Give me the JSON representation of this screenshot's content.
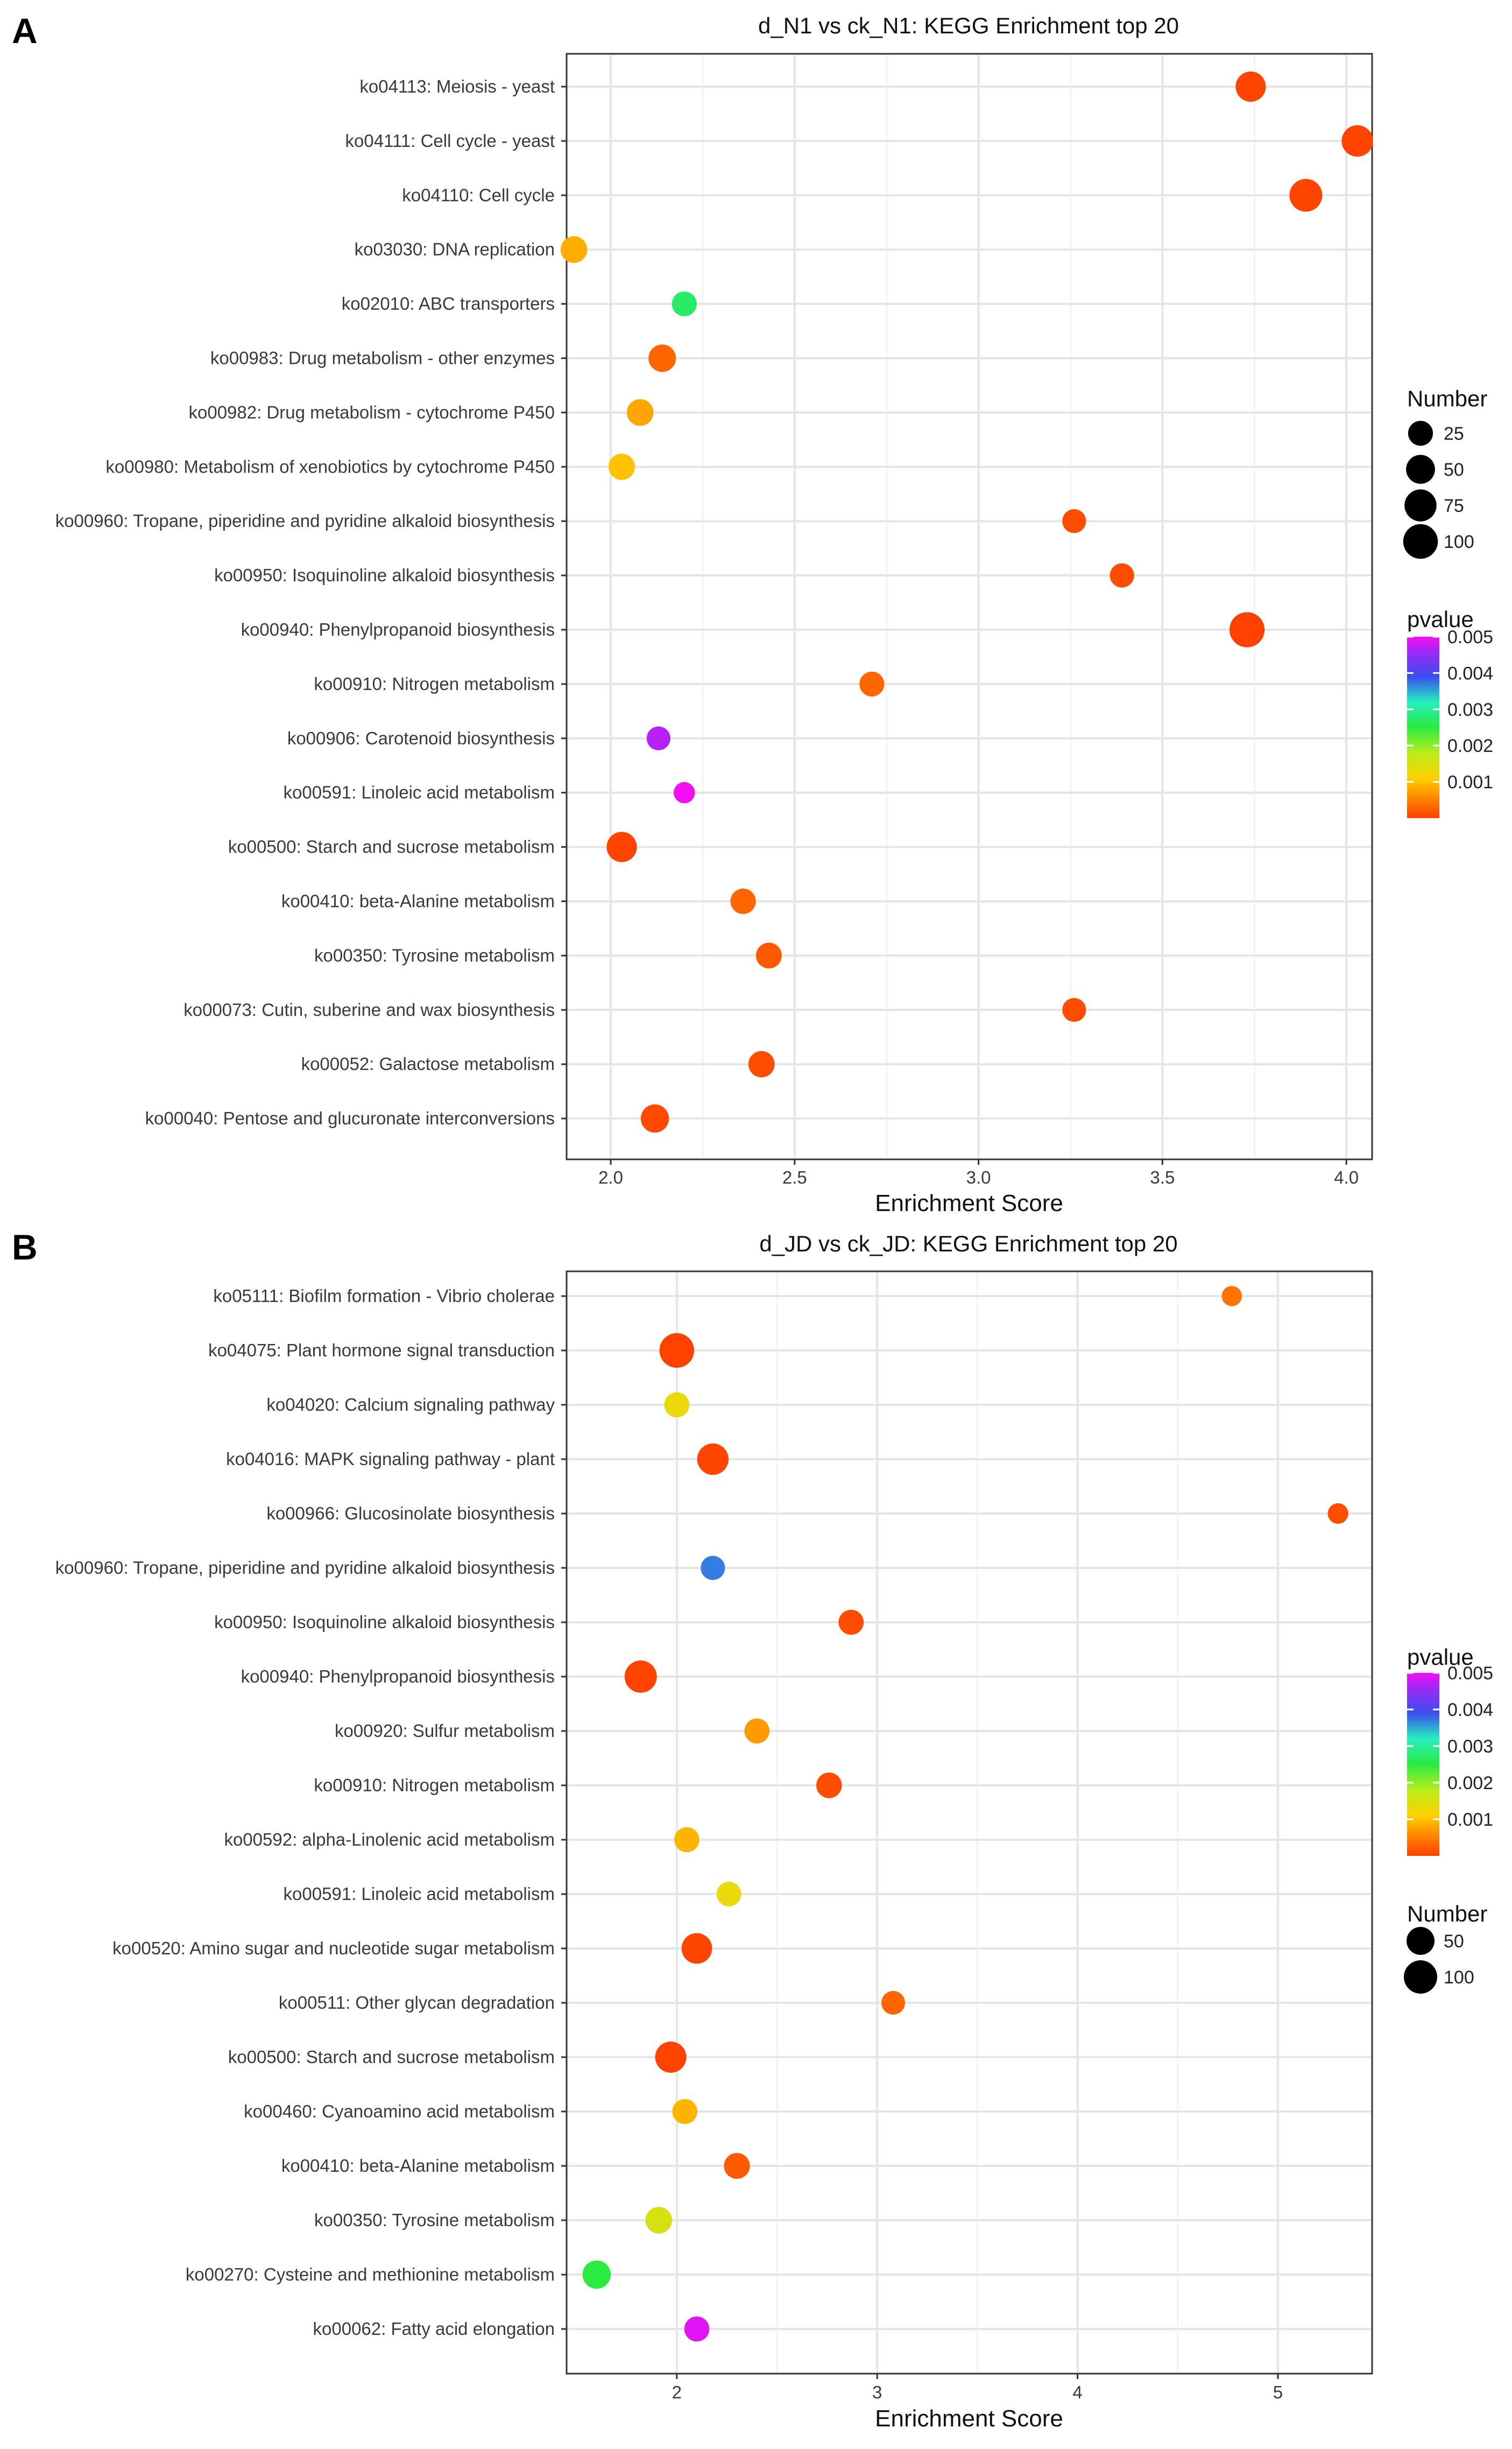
{
  "chart_data": [
    {
      "type": "scatter",
      "panel": "A",
      "title": "d_N1 vs ck_N1: KEGG Enrichment top 20",
      "xlabel": "Enrichment Score",
      "ylabel": "",
      "xlim": [
        1.88,
        4.07
      ],
      "xticks": [
        2.0,
        2.5,
        3.0,
        3.5,
        4.0
      ],
      "xtick_labels": [
        "2.0",
        "2.5",
        "3.0",
        "3.5",
        "4.0"
      ],
      "grid": true,
      "legend_order": [
        "size",
        "color"
      ],
      "size_legend": {
        "title": "Number",
        "values": [
          25,
          50,
          75,
          100
        ],
        "labels": [
          "25",
          "50",
          "75",
          "100"
        ]
      },
      "color_legend": {
        "title": "pvalue",
        "range": [
          0,
          0.005
        ],
        "ticks": [
          0.001,
          0.002,
          0.003,
          0.004,
          0.005
        ],
        "labels": [
          "0.001",
          "0.002",
          "0.003",
          "0.004",
          "0.005"
        ]
      },
      "points": [
        {
          "term": "ko04113: Meiosis - yeast",
          "x": 3.74,
          "number": 60,
          "pvalue": 5e-05
        },
        {
          "term": "ko04111: Cell cycle - yeast",
          "x": 4.03,
          "number": 70,
          "pvalue": 3e-05
        },
        {
          "term": "ko04110: Cell cycle",
          "x": 3.89,
          "number": 82,
          "pvalue": 3e-05
        },
        {
          "term": "ko03030: DNA replication",
          "x": 1.9,
          "number": 35,
          "pvalue": 0.00085
        },
        {
          "term": "ko02010: ABC transporters",
          "x": 2.2,
          "number": 25,
          "pvalue": 0.0027
        },
        {
          "term": "ko00983: Drug metabolism - other enzymes",
          "x": 2.14,
          "number": 40,
          "pvalue": 0.0003
        },
        {
          "term": "ko00982: Drug metabolism - cytochrome P450",
          "x": 2.08,
          "number": 35,
          "pvalue": 0.0008
        },
        {
          "term": "ko00980: Metabolism of xenobiotics by cytochrome P450",
          "x": 2.03,
          "number": 33,
          "pvalue": 0.001
        },
        {
          "term": "ko00960: Tropane, piperidine and pyridine alkaloid biosynthesis",
          "x": 3.26,
          "number": 20,
          "pvalue": 0.0001
        },
        {
          "term": "ko00950: Isoquinoline alkaloid biosynthesis",
          "x": 3.39,
          "number": 22,
          "pvalue": 0.0001
        },
        {
          "term": "ko00940: Phenylpropanoid biosynthesis",
          "x": 3.73,
          "number": 105,
          "pvalue": 1e-05
        },
        {
          "term": "ko00910: Nitrogen metabolism",
          "x": 2.71,
          "number": 25,
          "pvalue": 0.0003
        },
        {
          "term": "ko00906: Carotenoid biosynthesis",
          "x": 2.13,
          "number": 20,
          "pvalue": 0.0047
        },
        {
          "term": "ko00591: Linoleic acid metabolism",
          "x": 2.2,
          "number": 10,
          "pvalue": 0.005
        },
        {
          "term": "ko00500: Starch and sucrose metabolism",
          "x": 2.03,
          "number": 60,
          "pvalue": 3e-05
        },
        {
          "term": "ko00410: beta-Alanine metabolism",
          "x": 2.36,
          "number": 28,
          "pvalue": 0.0003
        },
        {
          "term": "ko00350: Tyrosine metabolism",
          "x": 2.43,
          "number": 30,
          "pvalue": 0.0002
        },
        {
          "term": "ko00073: Cutin, suberine and wax biosynthesis",
          "x": 3.26,
          "number": 20,
          "pvalue": 0.0001
        },
        {
          "term": "ko00052: Galactose metabolism",
          "x": 2.41,
          "number": 33,
          "pvalue": 0.0001
        },
        {
          "term": "ko00040: Pentose and glucuronate interconversions",
          "x": 2.12,
          "number": 45,
          "pvalue": 8e-05
        }
      ]
    },
    {
      "type": "scatter",
      "panel": "B",
      "title": "d_JD vs ck_JD: KEGG Enrichment top 20",
      "xlabel": "Enrichment Score",
      "ylabel": "",
      "xlim": [
        1.45,
        5.47
      ],
      "xticks": [
        2,
        3,
        4,
        5
      ],
      "xtick_labels": [
        "2",
        "3",
        "4",
        "5"
      ],
      "grid": true,
      "legend_order": [
        "color",
        "size"
      ],
      "size_legend": {
        "title": "Number",
        "values": [
          50,
          100
        ],
        "labels": [
          "50",
          "100"
        ]
      },
      "color_legend": {
        "title": "pvalue",
        "range": [
          0,
          0.005
        ],
        "ticks": [
          0.001,
          0.002,
          0.003,
          0.004,
          0.005
        ],
        "labels": [
          "0.001",
          "0.002",
          "0.003",
          "0.004",
          "0.005"
        ]
      },
      "points": [
        {
          "term": "ko05111: Biofilm formation - Vibrio cholerae",
          "x": 4.77,
          "number": 8,
          "pvalue": 0.0004
        },
        {
          "term": "ko04075: Plant hormone signal transduction",
          "x": 2.0,
          "number": 115,
          "pvalue": 1e-05
        },
        {
          "term": "ko04020: Calcium signaling pathway",
          "x": 2.0,
          "number": 30,
          "pvalue": 0.0013
        },
        {
          "term": "ko04016: MAPK signaling pathway - plant",
          "x": 2.18,
          "number": 80,
          "pvalue": 3e-05
        },
        {
          "term": "ko00966: Glucosinolate biosynthesis",
          "x": 5.3,
          "number": 9,
          "pvalue": 0.0001
        },
        {
          "term": "ko00960: Tropane, piperidine and pyridine alkaloid biosynthesis",
          "x": 2.18,
          "number": 25,
          "pvalue": 0.0037
        },
        {
          "term": "ko00950: Isoquinoline alkaloid biosynthesis",
          "x": 2.87,
          "number": 30,
          "pvalue": 0.0001
        },
        {
          "term": "ko00940: Phenylpropanoid biosynthesis",
          "x": 1.82,
          "number": 88,
          "pvalue": 2e-05
        },
        {
          "term": "ko00920: Sulfur metabolism",
          "x": 2.4,
          "number": 30,
          "pvalue": 0.0007
        },
        {
          "term": "ko00910: Nitrogen metabolism",
          "x": 2.76,
          "number": 33,
          "pvalue": 0.0001
        },
        {
          "term": "ko00592: alpha-Linolenic acid metabolism",
          "x": 2.05,
          "number": 30,
          "pvalue": 0.0009
        },
        {
          "term": "ko00591: Linoleic acid metabolism",
          "x": 2.26,
          "number": 27,
          "pvalue": 0.0013
        },
        {
          "term": "ko00520: Amino sugar and nucleotide sugar metabolism",
          "x": 2.1,
          "number": 72,
          "pvalue": 3e-05
        },
        {
          "term": "ko00511: Other glycan degradation",
          "x": 3.08,
          "number": 22,
          "pvalue": 0.0003
        },
        {
          "term": "ko00500: Starch and sucrose metabolism",
          "x": 1.97,
          "number": 78,
          "pvalue": 3e-05
        },
        {
          "term": "ko00460: Cyanoamino acid metabolism",
          "x": 2.04,
          "number": 30,
          "pvalue": 0.0009
        },
        {
          "term": "ko00410: beta-Alanine metabolism",
          "x": 2.3,
          "number": 35,
          "pvalue": 0.0002
        },
        {
          "term": "ko00350: Tyrosine metabolism",
          "x": 1.91,
          "number": 40,
          "pvalue": 0.0015
        },
        {
          "term": "ko00270: Cysteine and methionine metabolism",
          "x": 1.6,
          "number": 52,
          "pvalue": 0.0025
        },
        {
          "term": "ko00062: Fatty acid elongation",
          "x": 2.1,
          "number": 30,
          "pvalue": 0.0049
        }
      ]
    }
  ]
}
